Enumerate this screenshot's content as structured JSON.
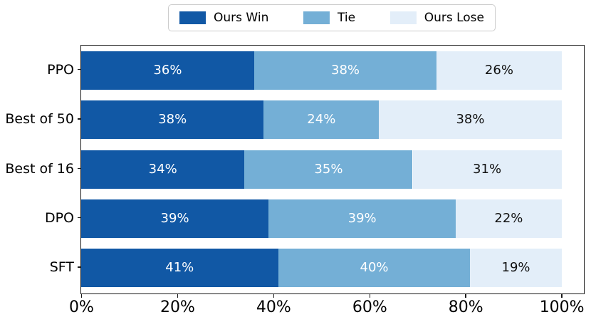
{
  "chart_data": {
    "type": "bar",
    "orientation": "horizontal",
    "stacked": true,
    "title": "",
    "xlabel": "",
    "ylabel": "",
    "grid": false,
    "categories": [
      "PPO",
      "Best of 50",
      "Best of 16",
      "DPO",
      "SFT"
    ],
    "series": [
      {
        "name": "Ours Win",
        "color": "#1158A5",
        "text_color": "#ffffff",
        "values": [
          36,
          38,
          34,
          39,
          41
        ],
        "labels": [
          "36%",
          "38%",
          "34%",
          "39%",
          "41%"
        ]
      },
      {
        "name": "Tie",
        "color": "#74AFD6",
        "text_color": "#ffffff",
        "values": [
          38,
          24,
          35,
          39,
          40
        ],
        "labels": [
          "38%",
          "24%",
          "35%",
          "39%",
          "40%"
        ]
      },
      {
        "name": "Ours Lose",
        "color": "#E3EEF9",
        "text_color": "#111111",
        "values": [
          26,
          38,
          31,
          22,
          19
        ],
        "labels": [
          "26%",
          "38%",
          "31%",
          "22%",
          "19%"
        ]
      }
    ],
    "x_ticks": [
      0,
      20,
      40,
      60,
      80,
      100
    ],
    "x_tick_labels": [
      "0%",
      "20%",
      "40%",
      "60%",
      "80%",
      "100%"
    ],
    "xlim": [
      0,
      104.5
    ],
    "legend": {
      "position": "top",
      "labels": [
        "Ours Win",
        "Tie",
        "Ours Lose"
      ]
    },
    "axis_color": "#1a1a1a"
  }
}
